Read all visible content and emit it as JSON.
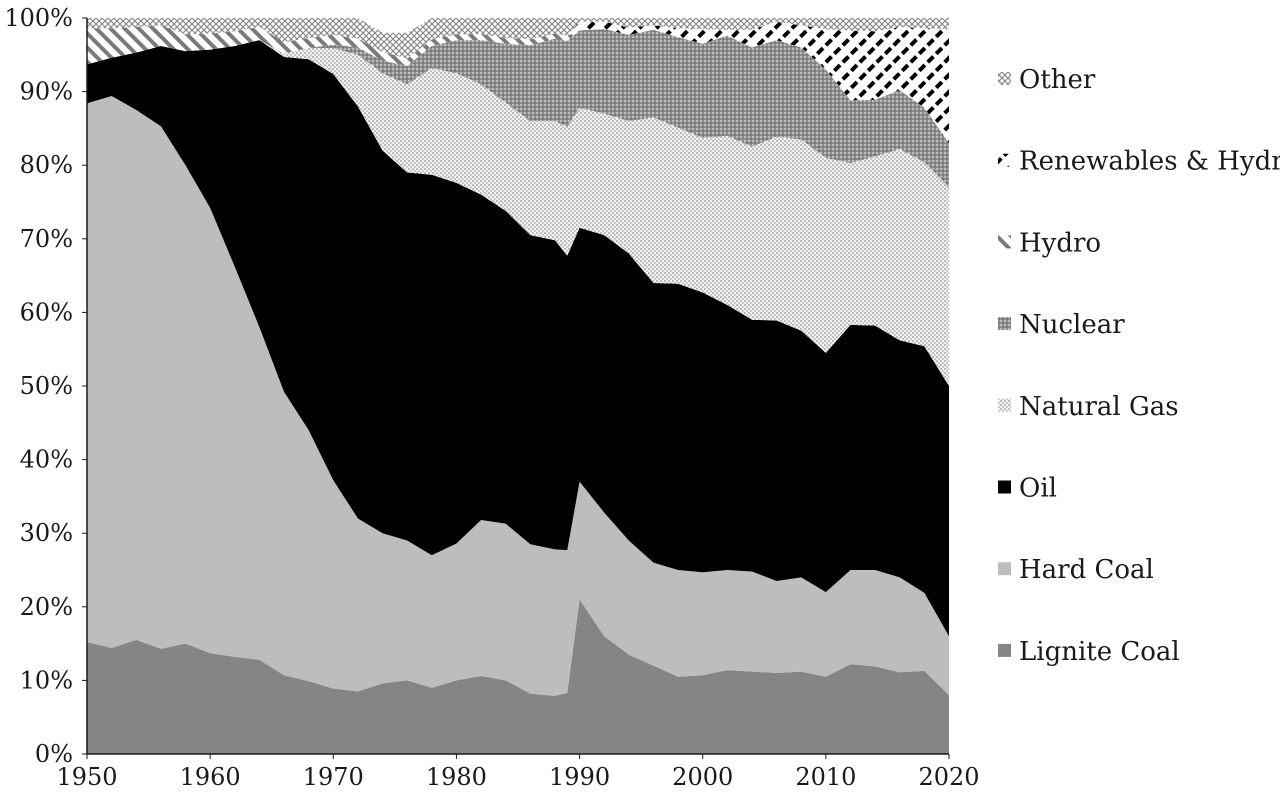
{
  "chart_data": {
    "type": "area",
    "stacked": true,
    "percent": true,
    "title": "",
    "xlabel": "",
    "ylabel": "",
    "xlim": [
      1950,
      2020
    ],
    "ylim": [
      0,
      100
    ],
    "x_ticks": [
      1950,
      1960,
      1970,
      1980,
      1990,
      2000,
      2010,
      2020
    ],
    "y_ticks": [
      0,
      10,
      20,
      30,
      40,
      50,
      60,
      70,
      80,
      90,
      100
    ],
    "y_tick_suffix": "%",
    "legend_position": "right",
    "x": [
      1950,
      1952,
      1954,
      1956,
      1958,
      1960,
      1962,
      1964,
      1966,
      1968,
      1970,
      1972,
      1974,
      1976,
      1978,
      1980,
      1982,
      1984,
      1986,
      1988,
      1989,
      1990,
      1992,
      1994,
      1996,
      1998,
      2000,
      2002,
      2004,
      2006,
      2008,
      2010,
      2012,
      2014,
      2016,
      2018,
      2020
    ],
    "series": [
      {
        "name": "Lignite Coal",
        "fill": "#858585",
        "pattern": "solid",
        "values": [
          15.2,
          14.4,
          15.5,
          14.3,
          15.0,
          13.7,
          13.2,
          12.8,
          10.7,
          9.9,
          8.9,
          8.5,
          9.6,
          10.0,
          9.0,
          10.0,
          10.6,
          10.0,
          8.2,
          7.9,
          8.3,
          21.0,
          16.0,
          13.5,
          12.0,
          10.5,
          10.7,
          11.4,
          11.2,
          11.0,
          11.2,
          10.5,
          12.2,
          11.9,
          11.1,
          11.3,
          8.0
        ]
      },
      {
        "name": "Hard Coal",
        "fill": "#bdbdbe",
        "pattern": "solid",
        "values": [
          73.2,
          75.0,
          72.0,
          71.0,
          65.0,
          60.5,
          53.0,
          45.2,
          38.5,
          34.1,
          28.3,
          23.5,
          20.4,
          19.0,
          18.0,
          18.6,
          21.2,
          21.3,
          20.3,
          19.9,
          19.4,
          16.0,
          16.8,
          15.5,
          14.0,
          14.5,
          14.0,
          13.6,
          13.6,
          12.5,
          12.8,
          11.5,
          12.8,
          13.1,
          12.9,
          10.6,
          8.0
        ]
      },
      {
        "name": "Oil",
        "fill": "#000000",
        "pattern": "solid",
        "values": [
          5.3,
          5.2,
          7.8,
          10.9,
          15.5,
          21.5,
          30.0,
          39.0,
          45.5,
          50.4,
          55.2,
          56.0,
          52.0,
          50.0,
          51.7,
          49.0,
          44.2,
          42.5,
          42.0,
          42.0,
          40.0,
          34.5,
          37.7,
          39.0,
          38.0,
          38.9,
          38.0,
          36.0,
          34.2,
          35.4,
          33.5,
          32.5,
          33.3,
          33.2,
          32.2,
          33.5,
          34.0
        ]
      },
      {
        "name": "Natural Gas",
        "fill": "#dcdcdc",
        "pattern": "dots",
        "values": [
          0.0,
          0.0,
          0.0,
          0.0,
          0.0,
          0.0,
          0.0,
          0.0,
          0.5,
          1.5,
          3.5,
          7.0,
          10.5,
          12.0,
          14.5,
          14.9,
          15.0,
          14.7,
          15.5,
          16.2,
          17.5,
          16.3,
          16.5,
          18.0,
          22.5,
          21.2,
          21.0,
          23.0,
          23.5,
          25.0,
          26.0,
          26.5,
          22.0,
          23.0,
          26.0,
          25.0,
          27.0
        ]
      },
      {
        "name": "Nuclear",
        "fill": "#8e8e8e",
        "pattern": "dots-dense",
        "values": [
          0.0,
          0.0,
          0.0,
          0.0,
          0.0,
          0.0,
          0.0,
          0.0,
          0.0,
          0.0,
          0.5,
          1.0,
          1.7,
          2.5,
          3.0,
          4.5,
          6.0,
          8.0,
          10.3,
          11.2,
          11.7,
          10.5,
          11.5,
          11.7,
          11.9,
          12.3,
          12.8,
          13.6,
          13.5,
          13.1,
          12.5,
          12.0,
          8.5,
          7.7,
          8.0,
          7.4,
          6.0
        ]
      },
      {
        "name": "Hydro",
        "fill": "#ffffff",
        "pattern": "diagonal",
        "values": [
          4.9,
          4.0,
          3.5,
          2.8,
          2.3,
          2.2,
          2.0,
          1.8,
          1.5,
          1.4,
          1.3,
          1.2,
          1.2,
          1.0,
          0.9,
          0.8,
          0.8,
          0.8,
          0.8,
          0.7,
          0.7,
          0.0,
          0.0,
          0.0,
          0.0,
          0.0,
          0.0,
          0.0,
          0.0,
          0.0,
          0.0,
          0.0,
          0.0,
          0.0,
          0.0,
          0.0,
          0.0
        ]
      },
      {
        "name": "Renewables & Hydro",
        "fill": "#ffffff",
        "pattern": "dashes",
        "values": [
          0.0,
          0.0,
          0.0,
          0.0,
          0.0,
          0.0,
          0.0,
          0.0,
          0.0,
          0.0,
          0.0,
          0.0,
          0.0,
          0.0,
          0.0,
          0.0,
          0.0,
          0.0,
          0.0,
          0.0,
          0.0,
          1.2,
          1.0,
          1.0,
          0.6,
          1.2,
          2.0,
          0.8,
          2.4,
          2.5,
          3.0,
          5.5,
          9.5,
          9.3,
          8.6,
          10.8,
          15.5
        ]
      },
      {
        "name": "Other",
        "fill": "#ffffff",
        "pattern": "crosshatch",
        "values": [
          1.4,
          1.4,
          1.2,
          1.0,
          2.2,
          2.1,
          1.8,
          1.2,
          3.3,
          2.7,
          2.3,
          2.8,
          2.6,
          3.5,
          2.9,
          2.2,
          2.2,
          2.7,
          2.9,
          2.1,
          2.4,
          0.5,
          0.5,
          1.3,
          1.0,
          1.4,
          1.5,
          1.6,
          1.6,
          0.5,
          1.0,
          1.5,
          1.7,
          1.8,
          1.2,
          1.4,
          1.5
        ]
      }
    ],
    "legend_order": [
      "Other",
      "Renewables & Hydro",
      "Hydro",
      "Nuclear",
      "Natural Gas",
      "Oil",
      "Hard Coal",
      "Lignite Coal"
    ]
  }
}
